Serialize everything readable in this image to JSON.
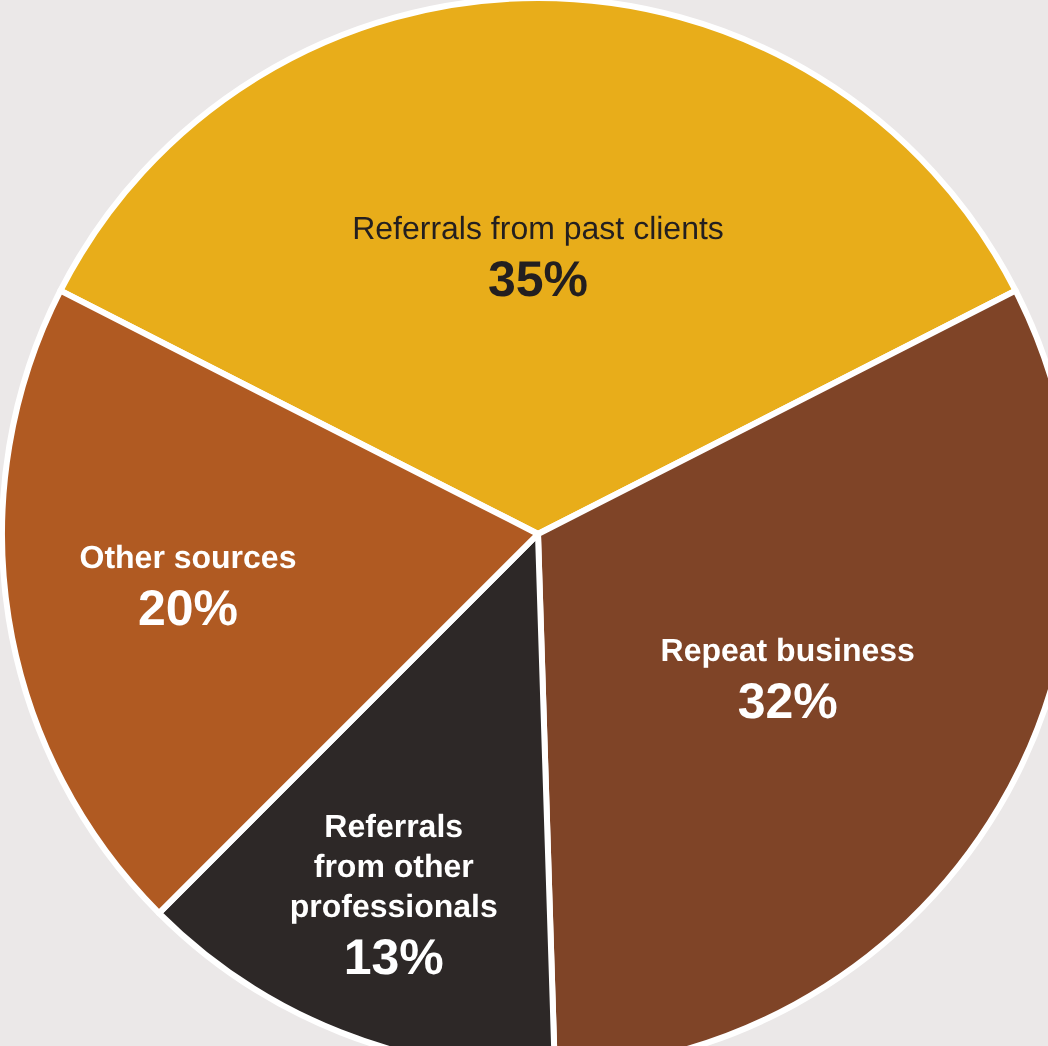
{
  "chart_data": {
    "type": "pie",
    "categories": [
      "Referrals from past clients",
      "Repeat business",
      "Referrals from other professionals",
      "Other sources"
    ],
    "values": [
      35,
      32,
      13,
      20
    ],
    "colors": [
      "#e8ad1a",
      "#7f4427",
      "#2d2827",
      "#b05a22"
    ],
    "value_labels": [
      "35%",
      "32%",
      "13%",
      "20%"
    ]
  }
}
